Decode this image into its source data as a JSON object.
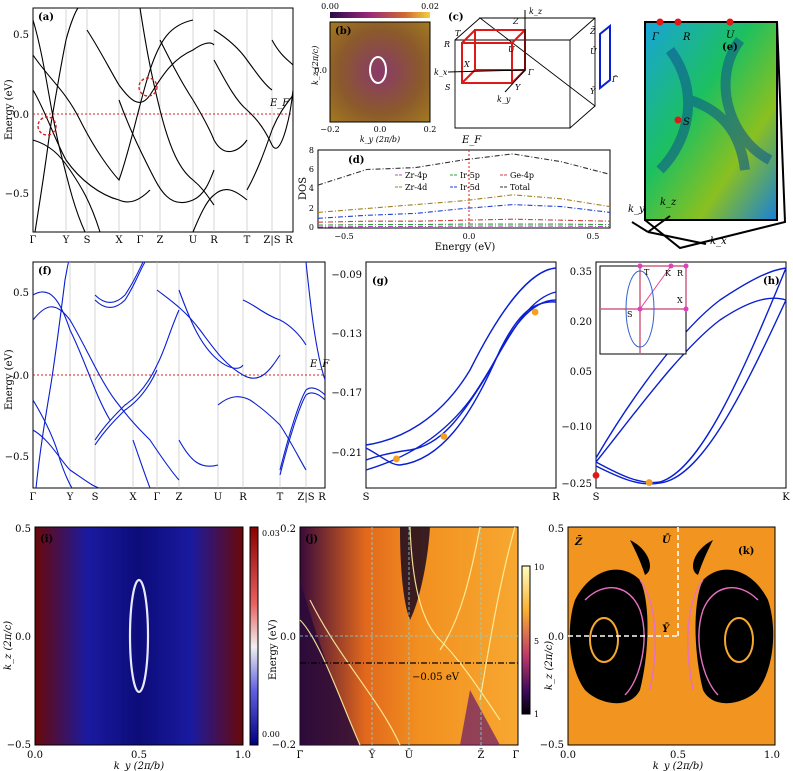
{
  "colors": {
    "band_black": "#000000",
    "band_blue": "#0a1fd0",
    "fermi": "#d62020",
    "node_orange": "#f5a020",
    "node_red": "#e01818"
  },
  "panels": {
    "a": {
      "label": "(a)",
      "ylabel": "Energy (eV)",
      "ef": "E_F",
      "yticks": [
        "0.5",
        "0.0",
        "−0.5"
      ],
      "kpath": [
        "Γ",
        "Y",
        "S",
        "X",
        "Γ",
        "Z",
        "U",
        "R",
        "T",
        "Z|S",
        "R"
      ]
    },
    "b": {
      "label": "(b)",
      "colorbar_min": "0.00",
      "colorbar_max": "0.02",
      "xlabel": "k_y (2π/b)",
      "ylabel": "k_z (2π/c)",
      "xticks": [
        "−0.2",
        "0.0",
        "0.2"
      ],
      "yticks": [
        "0.0"
      ]
    },
    "c": {
      "label": "(c)",
      "points": [
        "T",
        "Z",
        "R",
        "U",
        "X",
        "Γ",
        "S",
        "Y",
        "Z̄",
        "Ū",
        "Ȳ",
        "Γ̄"
      ],
      "axes": [
        "k_z",
        "k_x",
        "k_y"
      ]
    },
    "d": {
      "label": "(d)",
      "ylabel": "DOS",
      "xlabel": "Energy (eV)",
      "ef": "E_F",
      "xticks": [
        "−0.5",
        "0.0",
        "0.5"
      ],
      "yticks": [
        "0",
        "2",
        "4",
        "6",
        "8"
      ],
      "legend": [
        "Zr-4p",
        "Ir-5p",
        "Ge-4p",
        "Zr-4d",
        "Ir-5d",
        "Total"
      ]
    },
    "e": {
      "label": "(e)",
      "points": [
        "Γ",
        "R",
        "U",
        "S"
      ],
      "axes": [
        "k_y",
        "k_z",
        "k_x"
      ]
    },
    "f": {
      "label": "(f)",
      "ylabel": "Energy (eV)",
      "ef": "E_F",
      "yticks": [
        "0.5",
        "0.0",
        "−0.5"
      ],
      "kpath": [
        "Γ",
        "Y",
        "S",
        "X",
        "Γ",
        "Z",
        "U",
        "R",
        "T",
        "Z|S",
        "R"
      ]
    },
    "g": {
      "label": "(g)",
      "yticks": [
        "−0.09",
        "−0.13",
        "−0.17",
        "−0.21"
      ],
      "xticks": [
        "S",
        "R"
      ]
    },
    "h": {
      "label": "(h)",
      "yticks": [
        "0.35",
        "0.20",
        "0.05",
        "−0.10",
        "−0.25"
      ],
      "xticks": [
        "S",
        "K"
      ],
      "inset_labels": [
        "T",
        "K",
        "R",
        "S",
        "X"
      ]
    },
    "i": {
      "label": "(i)",
      "xlabel": "k_y (2π/b)",
      "ylabel": "k_z (2π/c)",
      "xticks": [
        "0.0",
        "0.5",
        "1.0"
      ],
      "yticks": [
        "0.5",
        "0.0",
        "−0.5"
      ],
      "colorbar_ticks": [
        "0.03",
        "0.00"
      ]
    },
    "j": {
      "label": "(j)",
      "ylabel": "Energy (eV)",
      "annotation": "−0.05 eV",
      "yticks": [
        "0.2",
        "0.0",
        "−0.2"
      ],
      "xticks": [
        "Γ̄",
        "Ȳ",
        "Ū",
        "Z̄",
        "Γ̄"
      ],
      "colorbar_ticks": [
        "10",
        "5",
        "1"
      ]
    },
    "k": {
      "label": "(k)",
      "xlabel": "k_y (2π/b)",
      "ylabel": "k_z (2π/c)",
      "xticks": [
        "0.0",
        "0.5",
        "1.0"
      ],
      "yticks": [
        "0.5",
        "0.0",
        "−0.5"
      ],
      "points": [
        "Z̄",
        "Ū",
        "Γ̄",
        "Ȳ"
      ]
    }
  },
  "chart_data": [
    {
      "type": "line",
      "panel": "g",
      "x": [
        "S",
        "R"
      ],
      "ylim": [
        -0.225,
        -0.085
      ],
      "nodes": [
        {
          "x": 0.16,
          "y": -0.207
        },
        {
          "x": 0.41,
          "y": -0.193
        },
        {
          "x": 0.89,
          "y": -0.116
        }
      ]
    },
    {
      "type": "line",
      "panel": "h",
      "x": [
        "S",
        "K"
      ],
      "ylim": [
        -0.27,
        0.355
      ],
      "nodes": [
        {
          "x": 0.0,
          "y": -0.235
        },
        {
          "x": 0.28,
          "y": -0.255
        }
      ]
    },
    {
      "type": "line",
      "panel": "d",
      "xlim": [
        -0.6,
        0.6
      ],
      "ylim": [
        0,
        8
      ],
      "series": [
        {
          "name": "Total",
          "x": [
            -0.6,
            -0.4,
            -0.2,
            0.0,
            0.2,
            0.4,
            0.6
          ],
          "values": [
            4.4,
            6.0,
            6.2,
            7.0,
            7.6,
            6.8,
            5.5
          ]
        },
        {
          "name": "Zr-4d",
          "x": [
            -0.6,
            -0.4,
            -0.2,
            0.0,
            0.2,
            0.4,
            0.6
          ],
          "values": [
            1.6,
            2.0,
            2.4,
            2.8,
            3.4,
            3.0,
            2.2
          ]
        },
        {
          "name": "Ir-5d",
          "x": [
            -0.6,
            -0.4,
            -0.2,
            0.0,
            0.2,
            0.4,
            0.6
          ],
          "values": [
            1.0,
            1.3,
            1.5,
            2.0,
            2.4,
            2.2,
            1.6
          ]
        },
        {
          "name": "Ge-4p",
          "x": [
            -0.6,
            -0.4,
            -0.2,
            0.0,
            0.2,
            0.4,
            0.6
          ],
          "values": [
            0.6,
            0.7,
            0.7,
            0.8,
            0.9,
            0.8,
            0.7
          ]
        },
        {
          "name": "Ir-5p",
          "x": [
            -0.6,
            -0.4,
            -0.2,
            0.0,
            0.2,
            0.4,
            0.6
          ],
          "values": [
            0.3,
            0.35,
            0.35,
            0.4,
            0.4,
            0.4,
            0.35
          ]
        },
        {
          "name": "Zr-4p",
          "x": [
            -0.6,
            -0.4,
            -0.2,
            0.0,
            0.2,
            0.4,
            0.6
          ],
          "values": [
            0.1,
            0.15,
            0.15,
            0.2,
            0.2,
            0.2,
            0.15
          ]
        }
      ]
    }
  ]
}
